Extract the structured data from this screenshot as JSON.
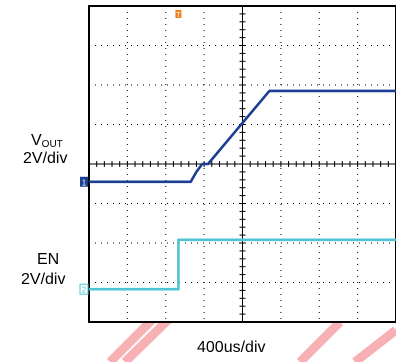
{
  "labels": {
    "vout_main": "V",
    "vout_sub": "OUT",
    "vout_scale": "2V/div",
    "en_name": "EN",
    "en_scale": "2V/div",
    "timebase": "400us/div",
    "ch1_marker": "1",
    "ch2_marker": "2",
    "trigger_marker": "T"
  },
  "colors": {
    "vout": "#1c3f94",
    "en": "#4fc3d3",
    "grid": "#000000",
    "trigger": "#f07f1a",
    "watermark": "#e8202a"
  },
  "chart_data": {
    "type": "line",
    "title": "",
    "xlabel": "400us/div",
    "ylabel": "",
    "grid": true,
    "divisions": {
      "x": 8,
      "y": 8
    },
    "xlim": [
      0,
      8
    ],
    "ylim": [
      0,
      8
    ],
    "series": [
      {
        "name": "VOUT",
        "x": [
          0,
          2.65,
          2.8,
          2.95,
          3.1,
          4.7,
          8
        ],
        "y": [
          3.55,
          3.55,
          3.8,
          4.0,
          4.0,
          5.85,
          5.85
        ]
      },
      {
        "name": "EN",
        "x": [
          0,
          2.33,
          2.33,
          8
        ],
        "y": [
          0.83,
          0.83,
          2.08,
          2.08
        ]
      }
    ]
  }
}
